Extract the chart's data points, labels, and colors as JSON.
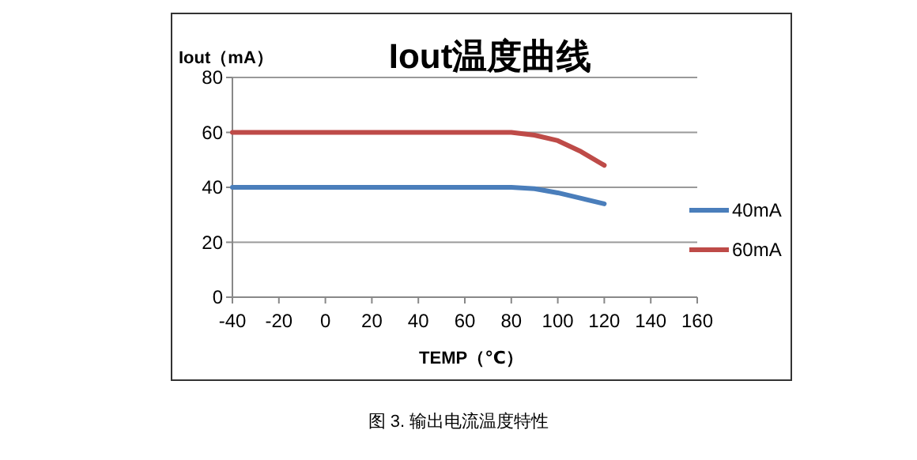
{
  "chart_data": {
    "type": "line",
    "title": "Iout温度曲线",
    "ylabel": "Iout（mA）",
    "xlabel": "TEMP（℃）",
    "annotations": [
      "图 3. 输出电流温度特性"
    ],
    "x": [
      -40,
      0,
      40,
      75,
      80,
      90,
      100,
      110,
      120
    ],
    "series": [
      {
        "name": "40mA",
        "color": "#4a7ebb",
        "values": [
          40,
          40,
          40,
          40,
          40,
          39.5,
          38,
          36,
          34
        ]
      },
      {
        "name": "60mA",
        "color": "#be4b48",
        "values": [
          60,
          60,
          60,
          60,
          60,
          59,
          57,
          53,
          48
        ]
      }
    ],
    "xlim": [
      -40,
      160
    ],
    "xticks": [
      -40,
      -20,
      0,
      20,
      40,
      60,
      80,
      100,
      120,
      140,
      160
    ],
    "ylim": [
      0,
      80
    ],
    "yticks": [
      0,
      20,
      40,
      60,
      80
    ],
    "grid": "y",
    "legend": "right",
    "marker": "none",
    "line_style": "solid"
  }
}
